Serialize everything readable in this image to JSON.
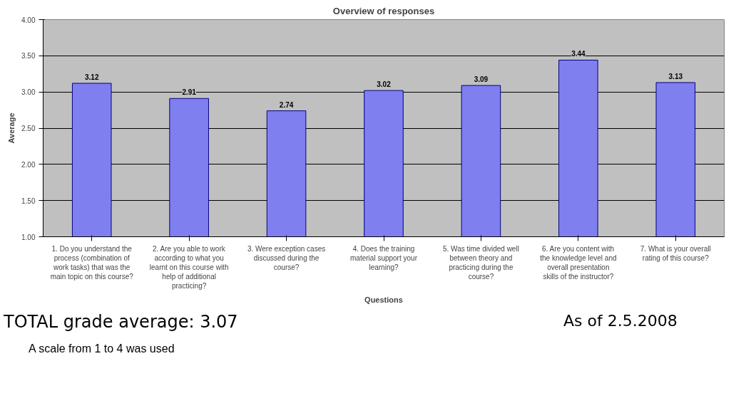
{
  "chart_data": {
    "type": "bar",
    "title": "Overview of responses",
    "xlabel": "Questions",
    "ylabel": "Average",
    "categories": [
      "1. Do you understand the process (combination of work tasks) that was the main topic on this course?",
      "2. Are you able to work according to what you learnt on this course with help of additional practicing?",
      "3. Were exception cases discussed during the course?",
      "4. Does the training material support your learning?",
      "5. Was time divided well between theory and practicing during the course?",
      "6. Are you content with the knowledge level and overall presentation skills of the instructor?",
      "7. What is your overall rating of this course?"
    ],
    "values": [
      3.12,
      2.91,
      2.74,
      3.02,
      3.09,
      3.44,
      3.13
    ],
    "color": "#7f7ff0",
    "data_labels": true,
    "ylim": [
      1,
      4
    ],
    "yticks": [
      {
        "value": 1,
        "label": "1.00"
      },
      {
        "value": 1.5,
        "label": "1.50"
      },
      {
        "value": 2,
        "label": "2.00"
      },
      {
        "value": 2.5,
        "label": "2.50"
      },
      {
        "value": 3,
        "label": "3.00"
      },
      {
        "value": 3.5,
        "label": "3.50"
      },
      {
        "value": 4,
        "label": "4.00"
      }
    ],
    "grid": "y",
    "annotations": [
      "TOTAL grade average: 3.07",
      "A scale from 1 to 4 was used",
      "As of 2.5.2008"
    ]
  }
}
